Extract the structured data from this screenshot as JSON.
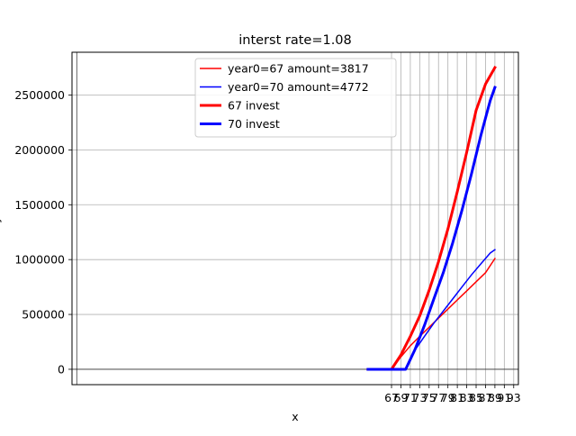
{
  "chart_data": {
    "type": "line",
    "title": "interst rate=1.08",
    "xlabel": "x",
    "ylabel": "y",
    "xlim": [
      -1,
      94
    ],
    "ylim": [
      -140000,
      2890000
    ],
    "x_ticks": [
      67,
      69,
      71,
      73,
      75,
      77,
      79,
      81,
      83,
      85,
      87,
      89,
      91,
      93
    ],
    "y_ticks": [
      0,
      500000,
      1000000,
      1500000,
      2000000,
      2500000
    ],
    "y_tick_labels": [
      "0",
      "500000",
      "1000000",
      "1500000",
      "2000000",
      "2500000"
    ],
    "grid": true,
    "legend_position": "top-center",
    "series": [
      {
        "name": "year0=67 amount=3817",
        "color": "#ff0000",
        "style": "thin",
        "x": [
          62,
          67,
          69,
          71,
          73,
          75,
          77,
          79,
          81,
          83,
          85,
          87,
          89
        ],
        "y": [
          0,
          0,
          114000,
          215000,
          300000,
          383000,
          466000,
          549000,
          632000,
          715000,
          798000,
          881000,
          1010000
        ]
      },
      {
        "name": "year0=70 amount=4772",
        "color": "#0000ff",
        "style": "thin",
        "x": [
          62,
          70,
          72,
          74,
          76,
          78,
          80,
          82,
          84,
          86,
          88,
          89
        ],
        "y": [
          0,
          0,
          175000,
          300000,
          420000,
          530000,
          640000,
          750000,
          860000,
          960000,
          1060000,
          1090000
        ]
      },
      {
        "name": "67 invest",
        "color": "#ff0000",
        "style": "thick",
        "x": [
          62,
          67,
          69,
          71,
          73,
          75,
          77,
          79,
          81,
          83,
          85,
          87,
          89
        ],
        "y": [
          0,
          0,
          132000,
          300000,
          487000,
          720000,
          980000,
          1280000,
          1620000,
          1980000,
          2360000,
          2600000,
          2750000
        ]
      },
      {
        "name": "70 invest",
        "color": "#0000ff",
        "style": "thick",
        "x": [
          62,
          70,
          72,
          74,
          76,
          78,
          80,
          82,
          84,
          86,
          88,
          89
        ],
        "y": [
          0,
          0,
          180000,
          400000,
          640000,
          880000,
          1150000,
          1450000,
          1780000,
          2130000,
          2450000,
          2570000
        ]
      }
    ]
  }
}
